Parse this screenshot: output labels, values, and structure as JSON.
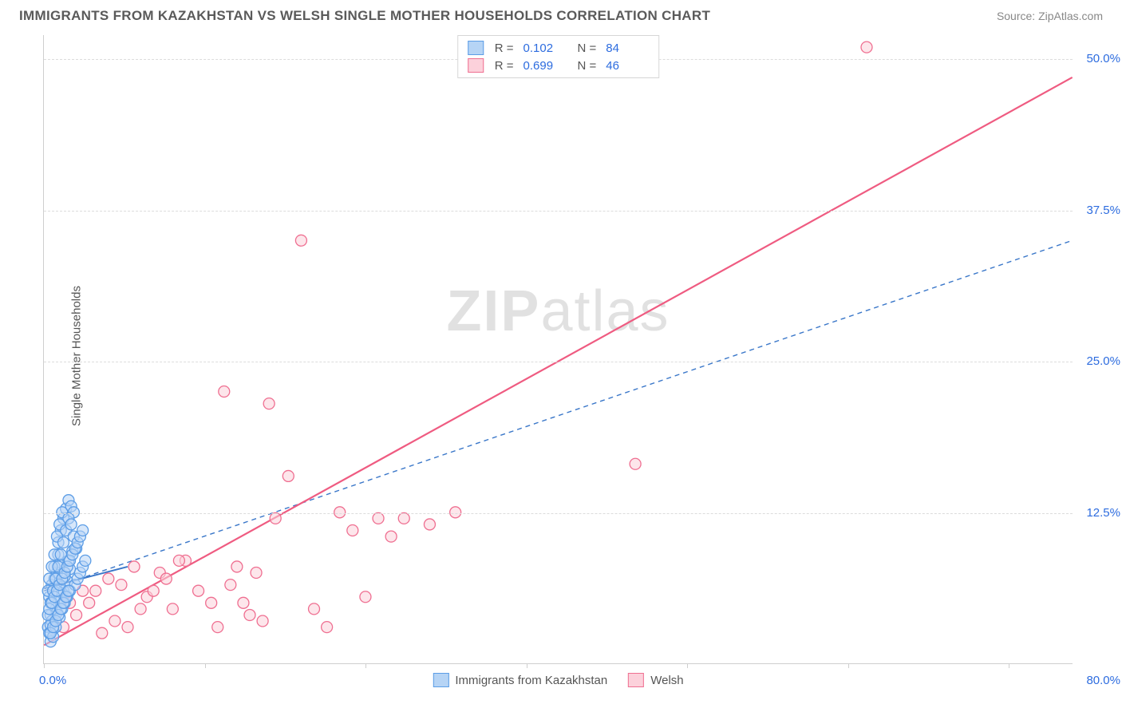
{
  "header": {
    "title": "IMMIGRANTS FROM KAZAKHSTAN VS WELSH SINGLE MOTHER HOUSEHOLDS CORRELATION CHART",
    "source": "Source: ZipAtlas.com"
  },
  "watermark": {
    "part1": "ZIP",
    "part2": "atlas"
  },
  "chart": {
    "type": "scatter",
    "xlim": [
      0,
      80
    ],
    "ylim": [
      0,
      52
    ],
    "y_gridlines": [
      12.5,
      25.0,
      37.5,
      50.0
    ],
    "ytick_labels": [
      "12.5%",
      "25.0%",
      "37.5%",
      "50.0%"
    ],
    "ytick_color": "#2d6cdf",
    "x_ticks": [
      0,
      12.5,
      25.0,
      37.5,
      50.0,
      62.5,
      75.0
    ],
    "x_min_label": "0.0%",
    "x_max_label": "80.0%",
    "xtick_label_color": "#2d6cdf",
    "ylabel": "Single Mother Households",
    "xlabel_legend_series1": "Immigrants from Kazakhstan",
    "xlabel_legend_series2": "Welsh",
    "grid_color": "#dcdcdc",
    "axis_color": "#cfcfcf",
    "background_color": "#ffffff",
    "marker_radius": 7,
    "marker_stroke_width": 1.3,
    "series": [
      {
        "name": "Immigrants from Kazakhstan",
        "fill": "#b6d4f5",
        "stroke": "#5c9de6",
        "fill_opacity": 0.55,
        "trend_color": "#3a77c9",
        "trend_dash": "6 5",
        "trend_width": 1.4,
        "trend_p1": [
          0,
          6.0
        ],
        "trend_p2": [
          80,
          35.0
        ],
        "fit_solid_p1": [
          0,
          6.2
        ],
        "fit_solid_p2": [
          6.5,
          8.0
        ],
        "R": 0.102,
        "N": 84,
        "points": [
          [
            0.3,
            3.0
          ],
          [
            0.5,
            4.0
          ],
          [
            0.4,
            5.5
          ],
          [
            0.6,
            6.5
          ],
          [
            0.8,
            7.0
          ],
          [
            1.0,
            7.5
          ],
          [
            1.2,
            8.2
          ],
          [
            0.7,
            2.8
          ],
          [
            1.5,
            6.0
          ],
          [
            1.3,
            5.2
          ],
          [
            0.9,
            4.5
          ],
          [
            1.1,
            9.0
          ],
          [
            0.6,
            3.5
          ],
          [
            2.0,
            7.8
          ],
          [
            1.8,
            6.8
          ],
          [
            0.4,
            2.5
          ],
          [
            0.5,
            3.2
          ],
          [
            1.0,
            4.2
          ],
          [
            1.4,
            5.8
          ],
          [
            1.6,
            7.2
          ],
          [
            1.9,
            8.5
          ],
          [
            2.2,
            9.3
          ],
          [
            0.3,
            6.0
          ],
          [
            0.8,
            8.0
          ],
          [
            1.1,
            10.0
          ],
          [
            1.3,
            11.0
          ],
          [
            1.5,
            12.0
          ],
          [
            1.7,
            12.8
          ],
          [
            1.9,
            13.5
          ],
          [
            2.1,
            13.0
          ],
          [
            2.3,
            12.5
          ],
          [
            0.5,
            1.8
          ],
          [
            0.7,
            2.2
          ],
          [
            0.9,
            3.0
          ],
          [
            1.2,
            3.8
          ],
          [
            1.4,
            4.5
          ],
          [
            1.6,
            5.0
          ],
          [
            1.8,
            5.5
          ],
          [
            2.0,
            6.0
          ],
          [
            2.4,
            6.5
          ],
          [
            2.6,
            7.0
          ],
          [
            2.8,
            7.5
          ],
          [
            3.0,
            8.0
          ],
          [
            3.2,
            8.5
          ],
          [
            0.4,
            7.0
          ],
          [
            0.6,
            8.0
          ],
          [
            0.8,
            9.0
          ],
          [
            1.0,
            10.5
          ],
          [
            1.2,
            11.5
          ],
          [
            1.4,
            12.5
          ],
          [
            0.5,
            5.0
          ],
          [
            0.7,
            6.0
          ],
          [
            0.9,
            7.0
          ],
          [
            1.1,
            8.0
          ],
          [
            1.3,
            9.0
          ],
          [
            1.5,
            10.0
          ],
          [
            1.7,
            11.0
          ],
          [
            1.9,
            12.0
          ],
          [
            2.1,
            11.5
          ],
          [
            2.3,
            10.5
          ],
          [
            2.5,
            9.5
          ],
          [
            0.3,
            4.0
          ],
          [
            0.4,
            4.5
          ],
          [
            0.6,
            5.0
          ],
          [
            0.8,
            5.5
          ],
          [
            1.0,
            6.0
          ],
          [
            1.2,
            6.5
          ],
          [
            1.4,
            7.0
          ],
          [
            1.6,
            7.5
          ],
          [
            1.8,
            8.0
          ],
          [
            2.0,
            8.5
          ],
          [
            2.2,
            9.0
          ],
          [
            2.4,
            9.5
          ],
          [
            2.6,
            10.0
          ],
          [
            2.8,
            10.5
          ],
          [
            3.0,
            11.0
          ],
          [
            0.5,
            2.5
          ],
          [
            0.7,
            3.0
          ],
          [
            0.9,
            3.5
          ],
          [
            1.1,
            4.0
          ],
          [
            1.3,
            4.5
          ],
          [
            1.5,
            5.0
          ],
          [
            1.7,
            5.5
          ],
          [
            1.9,
            6.0
          ]
        ]
      },
      {
        "name": "Welsh",
        "fill": "#fcd1db",
        "stroke": "#ef6f91",
        "fill_opacity": 0.55,
        "trend_color": "#ef5b81",
        "trend_dash": "none",
        "trend_width": 2.2,
        "trend_p1": [
          0,
          1.5
        ],
        "trend_p2": [
          80,
          48.5
        ],
        "R": 0.699,
        "N": 46,
        "points": [
          [
            1.5,
            3.0
          ],
          [
            2.5,
            4.0
          ],
          [
            3.5,
            5.0
          ],
          [
            4.0,
            6.0
          ],
          [
            5.0,
            7.0
          ],
          [
            6.0,
            6.5
          ],
          [
            7.0,
            8.0
          ],
          [
            8.0,
            5.5
          ],
          [
            9.0,
            7.5
          ],
          [
            10.0,
            4.5
          ],
          [
            11.0,
            8.5
          ],
          [
            12.0,
            6.0
          ],
          [
            13.0,
            5.0
          ],
          [
            14.0,
            22.5
          ],
          [
            15.0,
            8.0
          ],
          [
            16.0,
            4.0
          ],
          [
            17.0,
            3.5
          ],
          [
            6.5,
            3.0
          ],
          [
            7.5,
            4.5
          ],
          [
            8.5,
            6.0
          ],
          [
            9.5,
            7.0
          ],
          [
            10.5,
            8.5
          ],
          [
            18.0,
            12.0
          ],
          [
            19.0,
            15.5
          ],
          [
            20.0,
            35.0
          ],
          [
            21.0,
            4.5
          ],
          [
            22.0,
            3.0
          ],
          [
            23.0,
            12.5
          ],
          [
            24.0,
            11.0
          ],
          [
            25.0,
            5.5
          ],
          [
            26.0,
            12.0
          ],
          [
            27.0,
            10.5
          ],
          [
            28.0,
            12.0
          ],
          [
            17.5,
            21.5
          ],
          [
            30.0,
            11.5
          ],
          [
            32.0,
            12.5
          ],
          [
            13.5,
            3.0
          ],
          [
            14.5,
            6.5
          ],
          [
            15.5,
            5.0
          ],
          [
            16.5,
            7.5
          ],
          [
            5.5,
            3.5
          ],
          [
            4.5,
            2.5
          ],
          [
            3.0,
            6.0
          ],
          [
            2.0,
            5.0
          ],
          [
            46.0,
            16.5
          ],
          [
            64.0,
            51.0
          ]
        ]
      }
    ],
    "legend": {
      "r_label": "R  =",
      "n_label": "N  ="
    }
  }
}
